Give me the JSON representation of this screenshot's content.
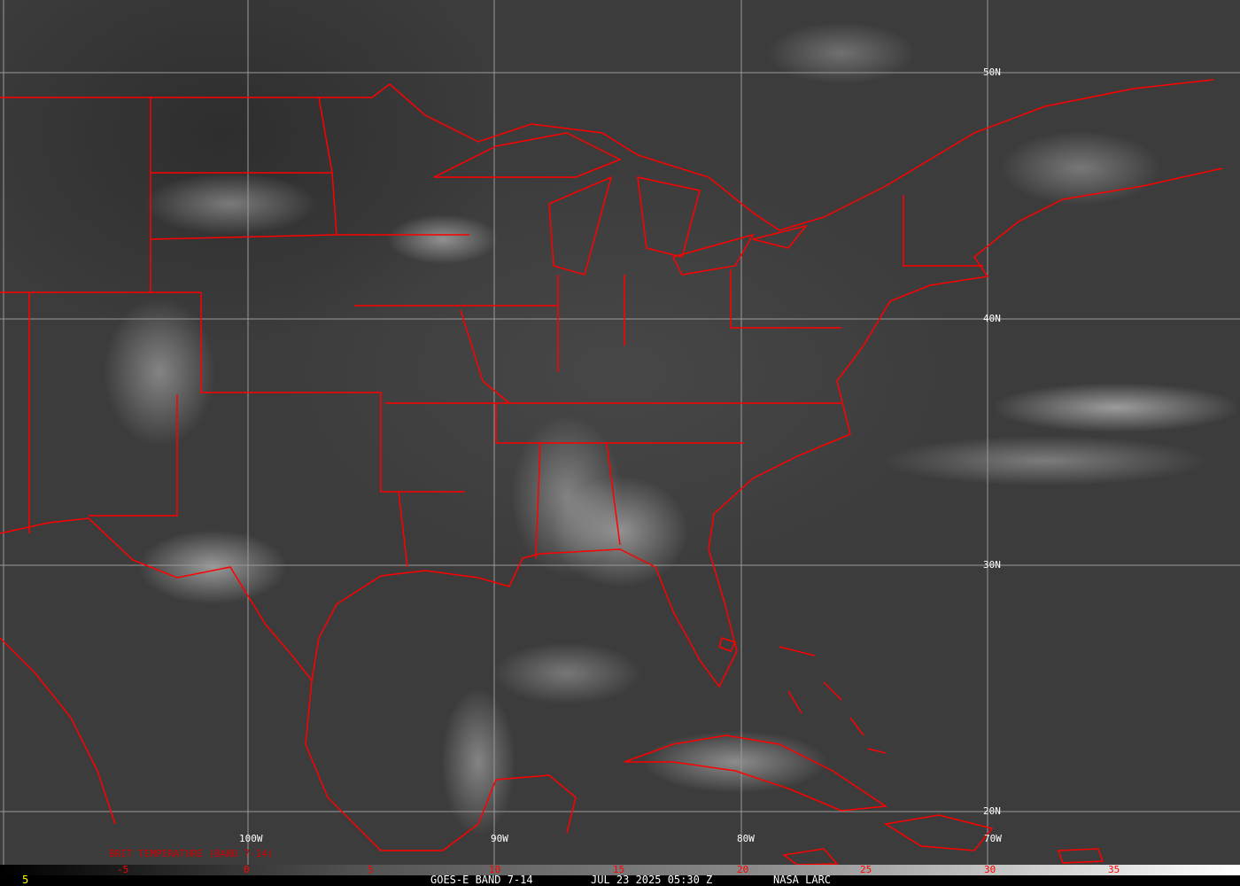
{
  "map": {
    "type": "satellite-imagery",
    "boundary_color": "#ff0000",
    "grid_color": "#aaaaaa",
    "lat_labels": [
      "50N",
      "40N",
      "30N",
      "20N"
    ],
    "lon_labels": [
      "100W",
      "90W",
      "80W",
      "70W"
    ]
  },
  "colorbar": {
    "title": "BRIT TEMPERATURE (BAND 7-14)",
    "ticks": [
      "-5",
      "0",
      "5",
      "10",
      "15",
      "20",
      "25",
      "30",
      "35"
    ],
    "tick_color": "#ff0000"
  },
  "footer": {
    "frame": "5",
    "product": "GOES-E BAND 7-14",
    "datetime": "JUL 23 2025 05:30 Z",
    "source": "NASA LARC"
  }
}
